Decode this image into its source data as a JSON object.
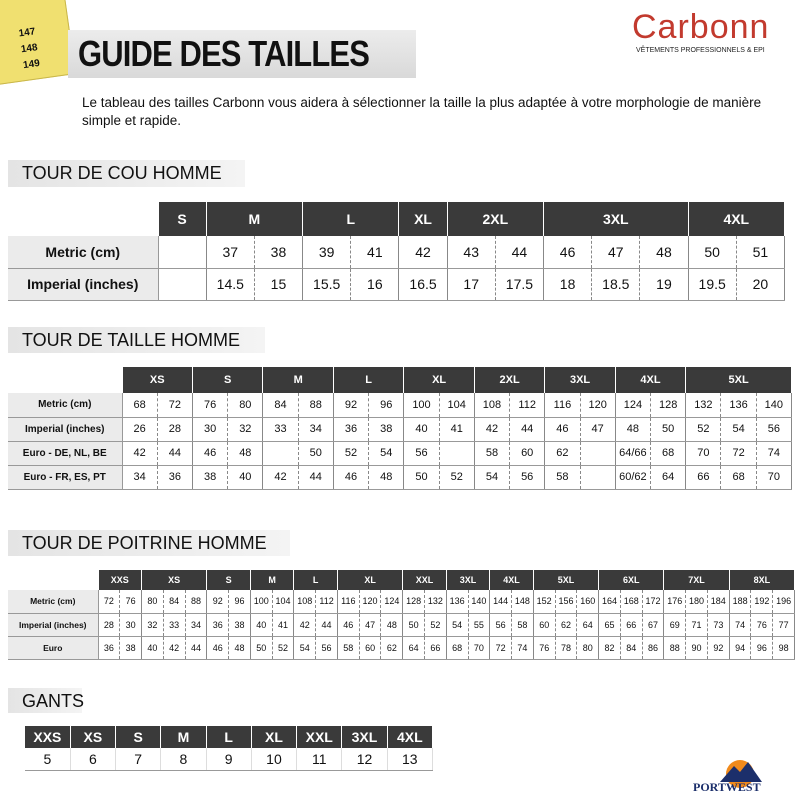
{
  "header": {
    "ruler_labels": [
      "147",
      "148",
      "149"
    ],
    "title": "GUIDE DES TAILLES",
    "brand": "Carbonn",
    "brand_tagline": "VÊTEMENTS PROFESSIONNELS & EPI",
    "intro": "Le tableau des tailles Carbonn vous aidera à sélectionner la taille la plus adaptée à votre morphologie de manière simple et rapide."
  },
  "sections": [
    {
      "title": "TOUR DE COU HOMME",
      "sizes": [
        "S",
        "M",
        "L",
        "XL",
        "2XL",
        "3XL",
        "4XL"
      ],
      "rows": [
        {
          "label": "Metric (cm)",
          "groups": [
            [
              null
            ],
            [
              "37",
              "38"
            ],
            [
              "39",
              "41"
            ],
            [
              "42"
            ],
            [
              "43",
              "44"
            ],
            [
              "46",
              "47",
              "48"
            ],
            [
              "50",
              "51"
            ]
          ]
        },
        {
          "label": "Imperial (inches)",
          "groups": [
            [
              null
            ],
            [
              "14.5",
              "15"
            ],
            [
              "15.5",
              "16"
            ],
            [
              "16.5"
            ],
            [
              "17",
              "17.5"
            ],
            [
              "18",
              "18.5",
              "19"
            ],
            [
              "19.5",
              "20"
            ]
          ]
        }
      ]
    },
    {
      "title": "TOUR DE TAILLE HOMME",
      "sizes": [
        "XS",
        "S",
        "M",
        "L",
        "XL",
        "2XL",
        "3XL",
        "4XL",
        "5XL"
      ],
      "rows": [
        {
          "label": "Metric (cm)",
          "groups": [
            [
              "68",
              "72"
            ],
            [
              "76",
              "80"
            ],
            [
              "84",
              "88"
            ],
            [
              "92",
              "96"
            ],
            [
              "100",
              "104"
            ],
            [
              "108",
              "112"
            ],
            [
              "116",
              "120"
            ],
            [
              "124",
              "128"
            ],
            [
              "132",
              "136",
              "140"
            ]
          ]
        },
        {
          "label": "Imperial (inches)",
          "groups": [
            [
              "26",
              "28"
            ],
            [
              "30",
              "32"
            ],
            [
              "33",
              "34"
            ],
            [
              "36",
              "38"
            ],
            [
              "40",
              "41"
            ],
            [
              "42",
              "44"
            ],
            [
              "46",
              "47"
            ],
            [
              "48",
              "50"
            ],
            [
              "52",
              "54",
              "56"
            ]
          ]
        },
        {
          "label": "Euro - DE, NL, BE",
          "groups": [
            [
              "42",
              "44"
            ],
            [
              "46",
              "48"
            ],
            [
              null,
              "50"
            ],
            [
              "52",
              "54"
            ],
            [
              "56",
              null
            ],
            [
              "58",
              "60"
            ],
            [
              "62",
              null
            ],
            [
              "64/66",
              "68"
            ],
            [
              "70",
              "72",
              "74"
            ]
          ]
        },
        {
          "label": "Euro - FR, ES, PT",
          "groups": [
            [
              "34",
              "36"
            ],
            [
              "38",
              "40"
            ],
            [
              "42",
              "44"
            ],
            [
              "46",
              "48"
            ],
            [
              "50",
              "52"
            ],
            [
              "54",
              "56"
            ],
            [
              "58",
              null
            ],
            [
              "60/62",
              "64"
            ],
            [
              "66",
              "68",
              "70"
            ]
          ]
        }
      ]
    },
    {
      "title": "TOUR DE POITRINE HOMME",
      "sizes": [
        "XXS",
        "XS",
        "S",
        "M",
        "L",
        "XL",
        "XXL",
        "3XL",
        "4XL",
        "5XL",
        "6XL",
        "7XL",
        "8XL"
      ],
      "rows": [
        {
          "label": "Metric (cm)",
          "groups": [
            [
              "72",
              "76"
            ],
            [
              "80",
              "84",
              "88"
            ],
            [
              "92",
              "96"
            ],
            [
              "100",
              "104"
            ],
            [
              "108",
              "112"
            ],
            [
              "116",
              "120",
              "124"
            ],
            [
              "128",
              "132"
            ],
            [
              "136",
              "140"
            ],
            [
              "144",
              "148"
            ],
            [
              "152",
              "156",
              "160"
            ],
            [
              "164",
              "168",
              "172"
            ],
            [
              "176",
              "180",
              "184"
            ],
            [
              "188",
              "192",
              "196"
            ]
          ]
        },
        {
          "label": "Imperial (inches)",
          "groups": [
            [
              "28",
              "30"
            ],
            [
              "32",
              "33",
              "34"
            ],
            [
              "36",
              "38"
            ],
            [
              "40",
              "41"
            ],
            [
              "42",
              "44"
            ],
            [
              "46",
              "47",
              "48"
            ],
            [
              "50",
              "52"
            ],
            [
              "54",
              "55"
            ],
            [
              "56",
              "58"
            ],
            [
              "60",
              "62",
              "64"
            ],
            [
              "65",
              "66",
              "67"
            ],
            [
              "69",
              "71",
              "73"
            ],
            [
              "74",
              "76",
              "77"
            ]
          ]
        },
        {
          "label": "Euro",
          "groups": [
            [
              "36",
              "38"
            ],
            [
              "40",
              "42",
              "44"
            ],
            [
              "46",
              "48"
            ],
            [
              "50",
              "52"
            ],
            [
              "54",
              "56"
            ],
            [
              "58",
              "60",
              "62"
            ],
            [
              "64",
              "66"
            ],
            [
              "68",
              "70"
            ],
            [
              "72",
              "74"
            ],
            [
              "76",
              "78",
              "80"
            ],
            [
              "82",
              "84",
              "86"
            ],
            [
              "88",
              "90",
              "92"
            ],
            [
              "94",
              "96",
              "98"
            ]
          ]
        }
      ]
    },
    {
      "title": "GANTS",
      "sizes": [
        "XXS",
        "XS",
        "S",
        "M",
        "L",
        "XL",
        "XXL",
        "3XL",
        "4XL"
      ],
      "values": [
        "5",
        "6",
        "7",
        "8",
        "9",
        "10",
        "11",
        "12",
        "13"
      ]
    }
  ],
  "footer": {
    "logo": "PORTWEST"
  }
}
